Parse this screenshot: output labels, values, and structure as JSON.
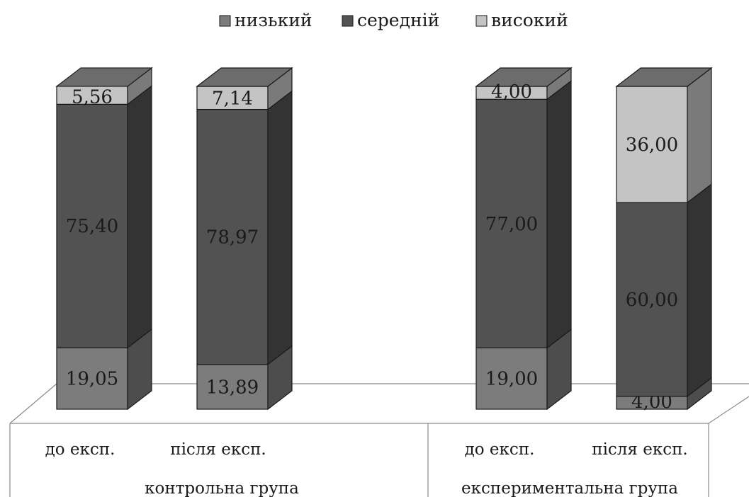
{
  "chart_data": {
    "type": "bar",
    "stacked": true,
    "three_d": true,
    "title": "",
    "xlabel": "",
    "ylabel": "",
    "ylim": [
      0,
      100
    ],
    "legend_position": "top",
    "grid": false,
    "groups": [
      {
        "label": "контрольна група",
        "categories": [
          "до експ.",
          "після експ."
        ]
      },
      {
        "label": "експериментальна група",
        "categories": [
          "до експ.",
          "після експ."
        ]
      }
    ],
    "categories": [
      "до експ.",
      "після експ.",
      "до експ.",
      "після експ."
    ],
    "series": [
      {
        "name": "низький",
        "color": "#7c7c7c",
        "values": [
          19.05,
          13.89,
          19.0,
          4.0
        ],
        "labels": [
          "19,05",
          "13,89",
          "19,00",
          "4,00"
        ]
      },
      {
        "name": "середній",
        "color": "#525252",
        "values": [
          75.4,
          78.97,
          77.0,
          60.0
        ],
        "labels": [
          "75,40",
          "78,97",
          "77,00",
          "60,00"
        ]
      },
      {
        "name": "високий",
        "color": "#c4c4c4",
        "values": [
          5.56,
          7.14,
          4.0,
          36.0
        ],
        "labels": [
          "5,56",
          "7,14",
          "4,00",
          "36,00"
        ]
      }
    ]
  }
}
